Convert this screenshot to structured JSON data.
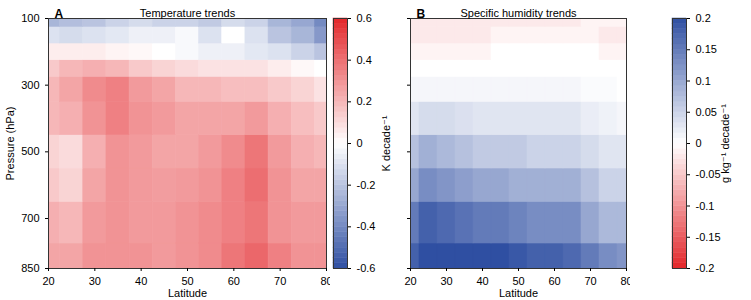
{
  "chart_data": [
    {
      "type": "heatmap",
      "panel": "A",
      "title": "Temperature trends",
      "x_label": "Latitude",
      "y_label": "Pressure (hPa)",
      "x": [
        20,
        25,
        30,
        35,
        40,
        45,
        50,
        55,
        60,
        65,
        70,
        75,
        80
      ],
      "y": [
        850,
        700,
        600,
        500,
        400,
        300,
        250,
        200,
        150,
        100
      ],
      "cells": [
        [
          0.25,
          0.25,
          0.3,
          0.3,
          0.3,
          0.28,
          0.3,
          0.32,
          0.38,
          0.42,
          0.35,
          0.3,
          0.3
        ],
        [
          0.22,
          0.2,
          0.28,
          0.3,
          0.28,
          0.28,
          0.3,
          0.32,
          0.35,
          0.38,
          0.3,
          0.28,
          0.28
        ],
        [
          0.15,
          0.12,
          0.25,
          0.3,
          0.28,
          0.27,
          0.28,
          0.3,
          0.35,
          0.4,
          0.3,
          0.25,
          0.25
        ],
        [
          0.12,
          0.1,
          0.22,
          0.3,
          0.28,
          0.25,
          0.25,
          0.28,
          0.32,
          0.38,
          0.28,
          0.22,
          0.2
        ],
        [
          0.2,
          0.22,
          0.3,
          0.35,
          0.3,
          0.28,
          0.25,
          0.25,
          0.25,
          0.28,
          0.22,
          0.18,
          0.15
        ],
        [
          0.2,
          0.25,
          0.32,
          0.35,
          0.28,
          0.25,
          0.2,
          0.2,
          0.18,
          0.18,
          0.15,
          0.12,
          0.08
        ],
        [
          0.15,
          0.2,
          0.22,
          0.2,
          0.15,
          0.12,
          0.1,
          0.08,
          0.08,
          0.08,
          0.05,
          0.02,
          0
        ],
        [
          0.05,
          0.05,
          0.05,
          0.03,
          0.02,
          0,
          -0.02,
          -0.05,
          -0.05,
          -0.08,
          -0.1,
          -0.15,
          -0.2
        ],
        [
          -0.1,
          -0.12,
          -0.1,
          -0.08,
          -0.05,
          -0.05,
          -0.02,
          -0.1,
          0,
          -0.1,
          -0.2,
          -0.25,
          -0.35
        ],
        [
          -0.25,
          -0.22,
          -0.2,
          -0.15,
          -0.12,
          -0.15,
          -0.15,
          -0.18,
          -0.12,
          -0.15,
          -0.25,
          -0.3,
          -0.4
        ]
      ],
      "xlim": [
        20,
        80
      ],
      "xticks": [
        20,
        30,
        40,
        50,
        60,
        70,
        80
      ],
      "ylim": [
        100,
        850
      ],
      "yticks": [
        100,
        300,
        500,
        700,
        850
      ],
      "colors": [
        "#2f4fa2",
        "#ffffff",
        "#e3262a"
      ],
      "colorbar": {
        "label": "K decade⁻¹",
        "lim": [
          -0.6,
          0.6
        ],
        "ticks": [
          -0.6,
          -0.4,
          -0.2,
          0,
          0.2,
          0.4,
          0.6
        ]
      }
    },
    {
      "type": "heatmap",
      "panel": "B",
      "title": "Specific humidity trends",
      "x_label": "Latitude",
      "x": [
        20,
        25,
        30,
        35,
        40,
        45,
        50,
        55,
        60,
        65,
        70,
        75,
        80
      ],
      "y": [
        850,
        700,
        600,
        500,
        400,
        300,
        250,
        200,
        150,
        100
      ],
      "cells": [
        [
          0.18,
          0.2,
          0.2,
          0.2,
          0.2,
          0.2,
          0.19,
          0.18,
          0.18,
          0.17,
          0.15,
          0.13,
          0.12
        ],
        [
          0.15,
          0.18,
          0.17,
          0.16,
          0.15,
          0.15,
          0.14,
          0.13,
          0.13,
          0.13,
          0.1,
          0.08,
          0.08
        ],
        [
          0.1,
          0.13,
          0.12,
          0.11,
          0.1,
          0.1,
          0.09,
          0.09,
          0.09,
          0.09,
          0.07,
          0.05,
          0.05
        ],
        [
          0.07,
          0.09,
          0.08,
          0.07,
          0.06,
          0.06,
          0.06,
          0.05,
          0.05,
          0.05,
          0.04,
          0.03,
          0.03
        ],
        [
          0.03,
          0.04,
          0.04,
          0.035,
          0.03,
          0.03,
          0.03,
          0.03,
          0.03,
          0.03,
          0.02,
          0.015,
          0.01
        ],
        [
          0.01,
          0.01,
          0.01,
          0.01,
          0.01,
          0.01,
          0.01,
          0.01,
          0.01,
          0.01,
          0.005,
          0.005,
          0
        ],
        [
          0,
          0,
          0,
          0,
          0,
          0,
          0,
          0,
          0,
          0,
          0,
          0,
          0
        ],
        [
          -0.01,
          -0.01,
          -0.01,
          -0.01,
          -0.01,
          0,
          0,
          0,
          0,
          0,
          0,
          -0.01,
          -0.01
        ],
        [
          -0.02,
          -0.02,
          -0.02,
          -0.02,
          -0.02,
          -0.01,
          -0.01,
          -0.01,
          -0.01,
          -0.01,
          -0.01,
          -0.02,
          -0.02
        ],
        [
          -0.02,
          -0.02,
          -0.02,
          -0.02,
          -0.02,
          -0.02,
          -0.02,
          -0.02,
          -0.02,
          -0.02,
          -0.01,
          -0.01,
          -0.01
        ]
      ],
      "xlim": [
        20,
        80
      ],
      "xticks": [
        20,
        30,
        40,
        50,
        60,
        70,
        80
      ],
      "ylim": [
        100,
        850
      ],
      "yticks": [
        100,
        300,
        500,
        700,
        850
      ],
      "tick_labels": "x",
      "colors": [
        "#e3262a",
        "#ffffff",
        "#2f4fa2"
      ],
      "colorbar": {
        "label": "g kg⁻¹ decade⁻¹",
        "lim": [
          -0.2,
          0.2
        ],
        "ticks": [
          -0.2,
          -0.15,
          -0.1,
          -0.05,
          0,
          0.05,
          0.1,
          0.15,
          0.2
        ]
      }
    }
  ]
}
